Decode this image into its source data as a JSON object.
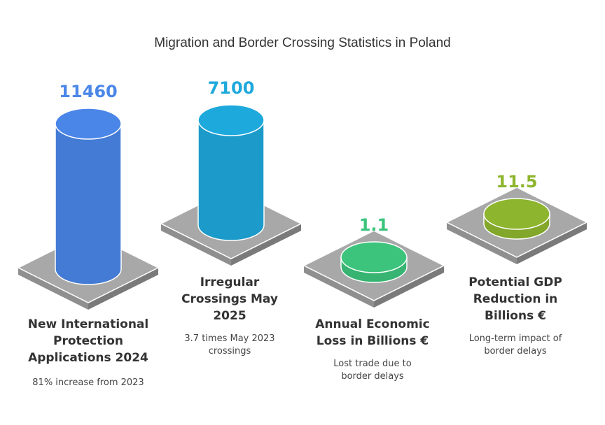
{
  "chart_data": {
    "type": "bar",
    "title": "Migration and Border Crossing Statistics in Poland",
    "categories": [
      "New International Protection Applications 2024",
      "Irregular Crossings May 2025",
      "Annual Economic Loss in Billions €",
      "Potential GDP Reduction in Billions €"
    ],
    "values": [
      11460,
      7100,
      1.1,
      11.5
    ],
    "value_labels": [
      "11460",
      "7100",
      "1.1",
      "11.5"
    ],
    "descriptions": [
      "81% increase from 2023",
      "3.7 times May 2023 crossings",
      "Lost trade due to border delays",
      "Long-term impact of border delays"
    ],
    "colors": [
      "#4a86e8",
      "#1ea9dc",
      "#3cc47c",
      "#8db52e"
    ],
    "value_colors": [
      "#4a86e8",
      "#1ea9dc",
      "#3cc47c",
      "#8db52e"
    ]
  }
}
